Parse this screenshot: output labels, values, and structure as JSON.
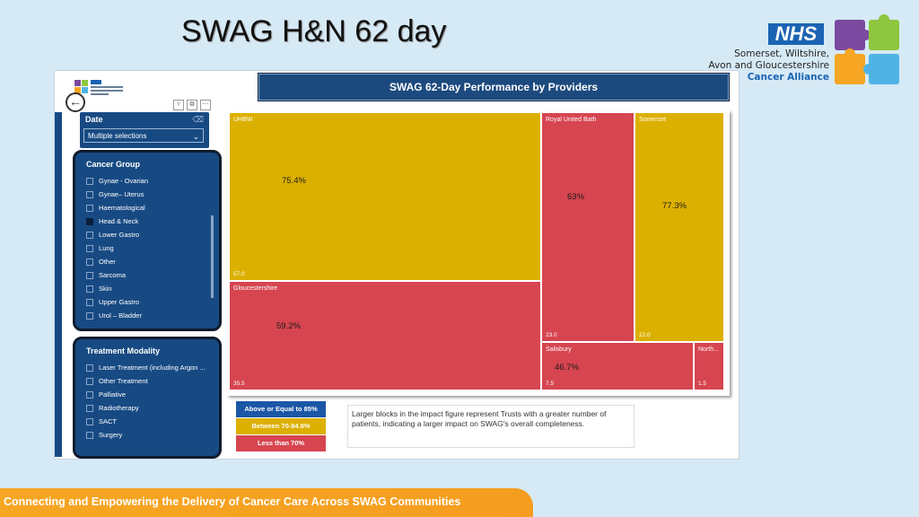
{
  "slide": {
    "title": "SWAG H&N 62 day",
    "footer": "Connecting and Empowering the Delivery of Cancer Care Across SWAG Communities"
  },
  "logo": {
    "nhs": "NHS",
    "org_lines": [
      "Somerset, Wiltshire,",
      "Avon and Gloucestershire",
      "Cancer Alliance"
    ]
  },
  "dashboard": {
    "title": "SWAG 62-Day Performance by Providers",
    "date_filter": {
      "label": "Date",
      "value": "Multiple selections"
    },
    "cancer_group": {
      "title": "Cancer Group",
      "items": [
        {
          "label": "Gynae - Ovarian",
          "checked": false
        },
        {
          "label": "Gynae– Uterus",
          "checked": false
        },
        {
          "label": "Haematological",
          "checked": false
        },
        {
          "label": "Head & Neck",
          "checked": true
        },
        {
          "label": "Lower Gastro",
          "checked": false
        },
        {
          "label": "Lung",
          "checked": false
        },
        {
          "label": "Other",
          "checked": false
        },
        {
          "label": "Sarcoma",
          "checked": false
        },
        {
          "label": "Skin",
          "checked": false
        },
        {
          "label": "Upper Gastro",
          "checked": false
        },
        {
          "label": "Urol – Bladder",
          "checked": false
        }
      ]
    },
    "treatment_modality": {
      "title": "Treatment Modality",
      "items": [
        {
          "label": "Laser Treatment (including Argon ...",
          "checked": false
        },
        {
          "label": "Other Treatment",
          "checked": false
        },
        {
          "label": "Palliative",
          "checked": false
        },
        {
          "label": "Radiotherapy",
          "checked": false
        },
        {
          "label": "SACT",
          "checked": false
        },
        {
          "label": "Surgery",
          "checked": false
        }
      ]
    },
    "legend": [
      {
        "label": "Above or Equal to 85%",
        "color": "#1b57a6"
      },
      {
        "label": "Between 70-84.9%",
        "color": "#dcb000"
      },
      {
        "label": "Less than 70%",
        "color": "#d64550"
      }
    ],
    "note": "Larger blocks in the impact figure represent Trusts with a greater number of patients, indicating a larger impact on SWAG's overall completeness."
  },
  "chart_data": {
    "type": "treemap",
    "providers": [
      {
        "name": "UHBW",
        "size": "57.0",
        "pct": "75.4%",
        "color": "#dcb000"
      },
      {
        "name": "Gloucestershire",
        "size": "35.5",
        "pct": "59.2%",
        "color": "#d64550"
      },
      {
        "name": "Royal United Bath",
        "size": "23.0",
        "pct": "63%",
        "color": "#d64550"
      },
      {
        "name": "Somerset",
        "size": "22.0",
        "pct": "77.3%",
        "color": "#dcb000"
      },
      {
        "name": "Salisbury",
        "size": "7.5",
        "pct": "46.7%",
        "color": "#d64550"
      },
      {
        "name": "North...",
        "size": "1.5",
        "pct": "",
        "color": "#d64550"
      }
    ]
  }
}
